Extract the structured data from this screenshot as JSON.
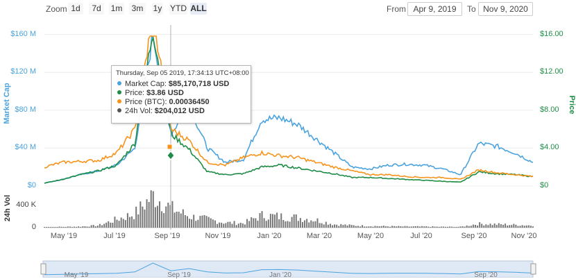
{
  "zoom": {
    "label": "Zoom",
    "buttons": [
      {
        "label": "1d",
        "active": false
      },
      {
        "label": "7d",
        "active": false
      },
      {
        "label": "1m",
        "active": false
      },
      {
        "label": "3m",
        "active": false
      },
      {
        "label": "1y",
        "active": false
      },
      {
        "label": "YTD",
        "active": false
      },
      {
        "label": "ALL",
        "active": true
      }
    ]
  },
  "range": {
    "from_label": "From",
    "from_value": "Apr 9, 2019",
    "to_label": "To",
    "to_value": "Nov 9, 2020"
  },
  "tooltip": {
    "header": "Thursday, Sep 05 2019, 17:34:13 UTC+08:00",
    "rows": [
      {
        "name": "Market Cap:",
        "value": "$85,170,718 USD",
        "color": "#4aa3df"
      },
      {
        "name": "Price:",
        "value": "$3.86 USD",
        "color": "#1e8c46"
      },
      {
        "name": "Price (BTC):",
        "value": "0.00036450",
        "color": "#f7931a"
      },
      {
        "name": "24h Vol:",
        "value": "$204,012 USD",
        "color": "#555555"
      }
    ]
  },
  "chart_data": {
    "type": "line",
    "left_axis": {
      "title": "Market Cap",
      "ticks": [
        "$0",
        "$40 M",
        "$80 M",
        "$120 M",
        "$160 M"
      ],
      "range": [
        0,
        170000000
      ]
    },
    "right_axis": {
      "title": "Price",
      "ticks": [
        "$0",
        "$4.00",
        "$8.00",
        "$12.00",
        "$16.00"
      ],
      "range": [
        0,
        17
      ]
    },
    "volume_axis": {
      "title": "24h Vol",
      "ticks": [
        "0",
        "400 K"
      ],
      "range": [
        0,
        650000
      ]
    },
    "x_ticks": [
      "May '19",
      "Jul '19",
      "Sep '19",
      "Nov '19",
      "Jan '20",
      "Mar '20",
      "May '20",
      "Jul '20",
      "Sep '20",
      "Nov '20"
    ],
    "x": [
      "Apr '19",
      "May '19",
      "Jun '19",
      "Jul '19",
      "Jul '19",
      "Aug '19",
      "Aug '19",
      "Aug '19",
      "Sep '19",
      "Sep '19",
      "Oct '19",
      "Nov '19",
      "Dec '19",
      "Dec '19",
      "Jan '20",
      "Jan '20",
      "Feb '20",
      "Mar '20",
      "Mar '20",
      "Apr '20",
      "May '20",
      "Jun '20",
      "Jul '20",
      "Aug '20",
      "Sep '20",
      "Sep '20",
      "Oct '20",
      "Nov '20"
    ],
    "series": [
      {
        "name": "Market Cap",
        "color": "#4aa3df",
        "axis": "left",
        "values": [
          3000000,
          7000000,
          12000000,
          16000000,
          22000000,
          40000000,
          160000000,
          55000000,
          85000000,
          40000000,
          25000000,
          28000000,
          70000000,
          72000000,
          65000000,
          50000000,
          35000000,
          20000000,
          18000000,
          22000000,
          23000000,
          22000000,
          18000000,
          12000000,
          45000000,
          42000000,
          35000000,
          25000000
        ]
      },
      {
        "name": "Price",
        "color": "#1e8c46",
        "axis": "right",
        "values": [
          0.3,
          0.7,
          1.2,
          1.6,
          2.2,
          4.5,
          16.5,
          5.5,
          3.86,
          1.5,
          1.2,
          1.3,
          2.0,
          2.2,
          1.9,
          1.6,
          1.3,
          0.9,
          0.9,
          0.8,
          0.7,
          0.6,
          0.5,
          0.4,
          1.5,
          1.3,
          1.2,
          1.0
        ]
      },
      {
        "name": "Price (BTC)",
        "color": "#f7931a",
        "axis": "right",
        "values": [
          2.0,
          2.5,
          2.6,
          2.7,
          3.5,
          6.0,
          18.0,
          6.0,
          4.8,
          2.5,
          2.2,
          3.0,
          3.5,
          3.2,
          3.0,
          2.5,
          2.0,
          1.6,
          1.2,
          1.2,
          1.0,
          0.9,
          0.9,
          0.7,
          1.7,
          1.4,
          1.2,
          1.0
        ]
      },
      {
        "name": "24h Vol",
        "color": "#777777",
        "axis": "volume",
        "values": [
          10000,
          15000,
          20000,
          40000,
          150000,
          250000,
          580000,
          350000,
          204012,
          150000,
          90000,
          80000,
          220000,
          200000,
          180000,
          140000,
          60000,
          40000,
          30000,
          25000,
          20000,
          20000,
          15000,
          15000,
          70000,
          60000,
          50000,
          40000
        ]
      }
    ],
    "navigator_ticks": [
      "May '19",
      "Sep '19",
      "Jan '20",
      "Sep '20"
    ]
  }
}
